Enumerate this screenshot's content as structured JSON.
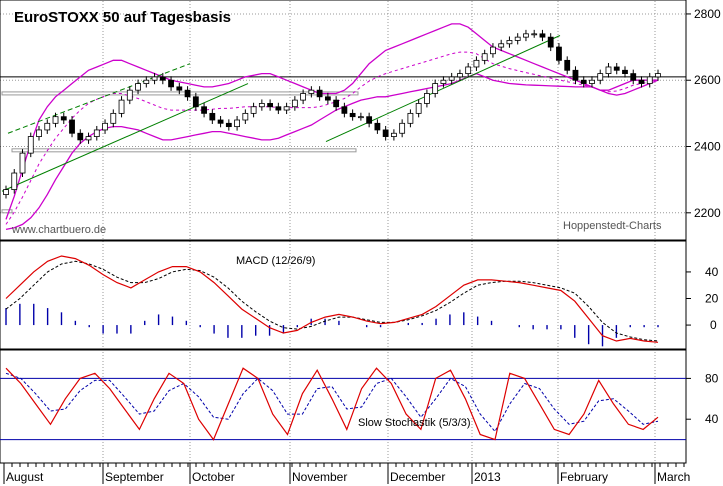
{
  "chart_data": [
    {
      "type": "candlestick",
      "title": "EuroSTOXX 50 auf Tagesbasis",
      "source_left": "www.chartbuero.de",
      "source_right": "Hoppenstedt-Charts",
      "y_ticks": [
        2200,
        2400,
        2600,
        2800
      ],
      "ylim": [
        2130,
        2830
      ],
      "reference_level": 2610,
      "series": [
        {
          "name": "close",
          "values": [
            2270,
            2320,
            2380,
            2430,
            2450,
            2470,
            2490,
            2480,
            2440,
            2420,
            2430,
            2450,
            2470,
            2500,
            2540,
            2570,
            2590,
            2600,
            2610,
            2600,
            2580,
            2570,
            2550,
            2520,
            2500,
            2480,
            2470,
            2460,
            2480,
            2500,
            2520,
            2530,
            2520,
            2510,
            2520,
            2540,
            2560,
            2570,
            2550,
            2540,
            2520,
            2500,
            2490,
            2490,
            2470,
            2450,
            2430,
            2440,
            2470,
            2500,
            2530,
            2560,
            2590,
            2600,
            2610,
            2620,
            2640,
            2660,
            2680,
            2700,
            2710,
            2720,
            2730,
            2740,
            2740,
            2730,
            2700,
            2660,
            2630,
            2600,
            2590,
            2600,
            2620,
            2640,
            2630,
            2620,
            2600,
            2590,
            2610,
            2620
          ]
        },
        {
          "name": "upper_band",
          "values": [
            2180,
            2250,
            2330,
            2410,
            2480,
            2520,
            2550,
            2570,
            2590,
            2610,
            2630,
            2640,
            2650,
            2660,
            2660,
            2650,
            2640,
            2630,
            2620,
            2610,
            2600,
            2595,
            2590,
            2585,
            2580,
            2580,
            2585,
            2590,
            2600,
            2610,
            2615,
            2620,
            2620,
            2610,
            2600,
            2590,
            2580,
            2570,
            2560,
            2560,
            2560,
            2570,
            2590,
            2620,
            2650,
            2670,
            2690,
            2700,
            2710,
            2720,
            2730,
            2740,
            2750,
            2760,
            2770,
            2770,
            2760,
            2740,
            2720,
            2700,
            2690,
            2680,
            2670,
            2660,
            2650,
            2640,
            2630,
            2620,
            2610,
            2600,
            2590,
            2580,
            2570,
            2570,
            2580,
            2590,
            2600,
            2600,
            2600,
            2600
          ]
        },
        {
          "name": "lower_band",
          "values": [
            2150,
            2155,
            2165,
            2185,
            2215,
            2255,
            2300,
            2340,
            2380,
            2410,
            2430,
            2445,
            2455,
            2460,
            2460,
            2455,
            2450,
            2440,
            2430,
            2420,
            2420,
            2425,
            2430,
            2435,
            2440,
            2445,
            2445,
            2440,
            2435,
            2430,
            2425,
            2420,
            2420,
            2425,
            2435,
            2445,
            2455,
            2465,
            2480,
            2495,
            2510,
            2520,
            2530,
            2540,
            2545,
            2550,
            2550,
            2555,
            2560,
            2565,
            2570,
            2575,
            2580,
            2585,
            2590,
            2600,
            2610,
            2620,
            2610,
            2600,
            2595,
            2590,
            2588,
            2586,
            2585,
            2584,
            2583,
            2582,
            2581,
            2580,
            2580,
            2580,
            2570,
            2560,
            2555,
            2560,
            2570,
            2580,
            2590,
            2600
          ]
        }
      ]
    },
    {
      "type": "line",
      "title": "MACD (12/26/9)",
      "y_ticks": [
        40,
        20,
        0
      ],
      "ylim": [
        -15,
        55
      ],
      "series": [
        {
          "name": "MACD",
          "values": [
            20,
            30,
            40,
            48,
            52,
            50,
            45,
            38,
            32,
            28,
            34,
            40,
            44,
            44,
            40,
            32,
            22,
            12,
            5,
            -2,
            -6,
            -4,
            2,
            6,
            8,
            6,
            3,
            1,
            2,
            5,
            8,
            14,
            22,
            30,
            34,
            34,
            33,
            32,
            30,
            28,
            26,
            18,
            5,
            -8,
            -12,
            -10,
            -12,
            -13
          ]
        },
        {
          "name": "Signal",
          "values": [
            12,
            20,
            30,
            40,
            46,
            48,
            46,
            42,
            36,
            32,
            32,
            35,
            40,
            42,
            41,
            36,
            28,
            18,
            10,
            3,
            -2,
            -3,
            -1,
            3,
            6,
            6,
            4,
            2,
            2,
            4,
            7,
            11,
            17,
            24,
            30,
            32,
            33,
            33,
            32,
            30,
            28,
            24,
            14,
            2,
            -6,
            -9,
            -11,
            -12
          ]
        }
      ]
    },
    {
      "type": "line",
      "title": "Slow Stochastik (5/3/3)",
      "y_ticks": [
        80,
        40
      ],
      "ylim": [
        0,
        100
      ],
      "reference_levels": [
        80,
        20
      ],
      "series": [
        {
          "name": "%K",
          "values": [
            90,
            75,
            55,
            35,
            60,
            80,
            85,
            70,
            50,
            30,
            60,
            85,
            75,
            40,
            20,
            55,
            90,
            80,
            45,
            25,
            65,
            88,
            60,
            30,
            70,
            90,
            75,
            45,
            30,
            80,
            88,
            60,
            25,
            20,
            85,
            80,
            55,
            30,
            25,
            45,
            78,
            55,
            35,
            30,
            42
          ]
        },
        {
          "name": "%D",
          "values": [
            85,
            80,
            65,
            48,
            50,
            68,
            78,
            78,
            62,
            45,
            48,
            68,
            75,
            62,
            42,
            40,
            65,
            80,
            68,
            45,
            45,
            70,
            72,
            50,
            52,
            75,
            80,
            62,
            42,
            60,
            80,
            72,
            45,
            28,
            55,
            75,
            70,
            50,
            35,
            38,
            58,
            60,
            48,
            35,
            38
          ]
        }
      ]
    }
  ],
  "x_axis": {
    "months": [
      "August",
      "September",
      "October",
      "November",
      "December",
      "2013",
      "February",
      "March"
    ]
  },
  "colors": {
    "candle_up": "#ffffff",
    "candle_down": "#000000",
    "bollinger": "#cc00cc",
    "moving_average": "#cc00cc",
    "trend": "#008000",
    "macd_line": "#dd0000",
    "signal_line": "#000000",
    "histogram": "#0000aa",
    "stoch_k": "#dd0000",
    "stoch_d": "#0000aa",
    "stoch_levels": "#0000aa"
  }
}
